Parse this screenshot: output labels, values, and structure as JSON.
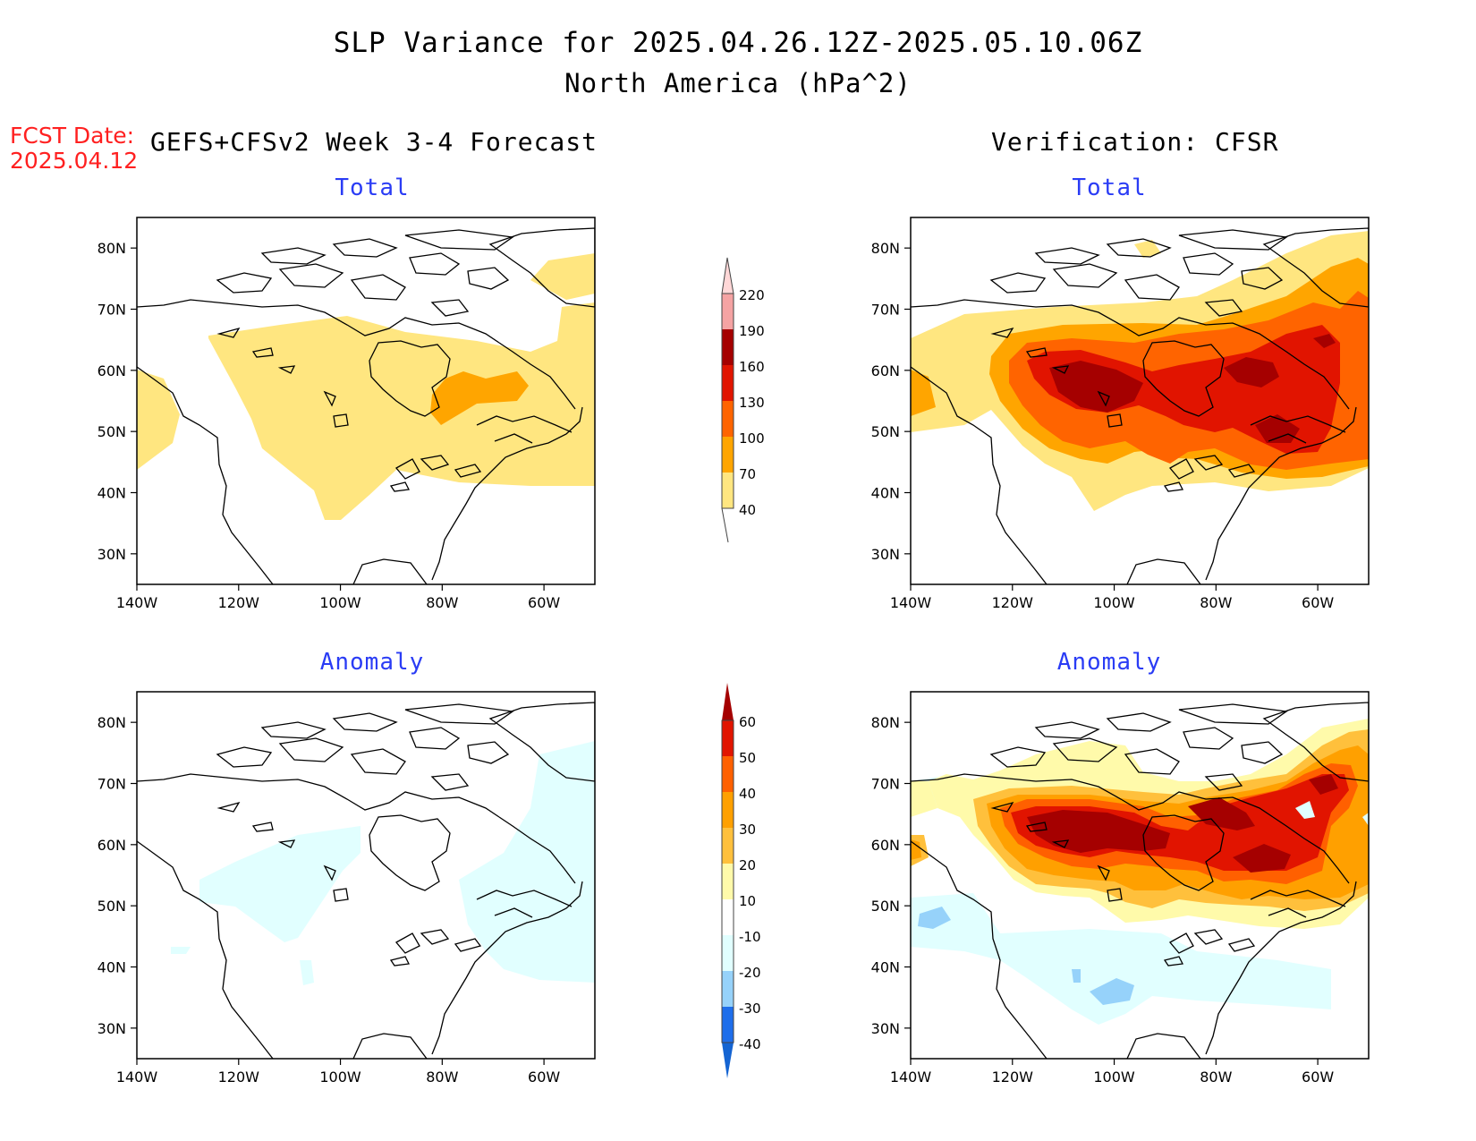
{
  "title": "SLP Variance for 2025.04.26.12Z-2025.05.10.06Z",
  "subtitle": "North America (hPa^2)",
  "fcst_label": "FCST Date:",
  "fcst_date": "2025.04.12",
  "left_header": "GEFS+CFSv2 Week 3-4 Forecast",
  "right_header": "Verification: CFSR",
  "panels": {
    "fcst_total": {
      "title": "Total"
    },
    "ver_total": {
      "title": "Total"
    },
    "fcst_anom": {
      "title": "Anomaly"
    },
    "ver_anom": {
      "title": "Anomaly"
    }
  },
  "axes": {
    "lat_ticks": [
      "30N",
      "40N",
      "50N",
      "60N",
      "70N",
      "80N"
    ],
    "lon_ticks": [
      "140W",
      "120W",
      "100W",
      "80W",
      "60W"
    ],
    "lat_range": [
      25,
      85
    ],
    "lon_range": [
      -140,
      -50
    ]
  },
  "total_colorbar": {
    "levels": [
      "40",
      "70",
      "100",
      "130",
      "160",
      "190",
      "220"
    ],
    "colors": [
      "#ffe680",
      "#ffa500",
      "#ff6400",
      "#e11400",
      "#a50000",
      "#f5a3a3",
      "#ffd7d7"
    ]
  },
  "anomaly_colorbar": {
    "levels": [
      "-40",
      "-30",
      "-20",
      "-10",
      "10",
      "20",
      "30",
      "40",
      "50",
      "60"
    ],
    "colors": [
      "#1464d2",
      "#1e6eeb",
      "#96d2fa",
      "#e1ffff",
      "#ffffff",
      "#fffaaa",
      "#ffc03c",
      "#ffa000",
      "#ff6000",
      "#e11400",
      "#a50000"
    ]
  },
  "colors": {
    "title_blue": "#2a3cf5",
    "fcst_red": "#ff2020"
  }
}
